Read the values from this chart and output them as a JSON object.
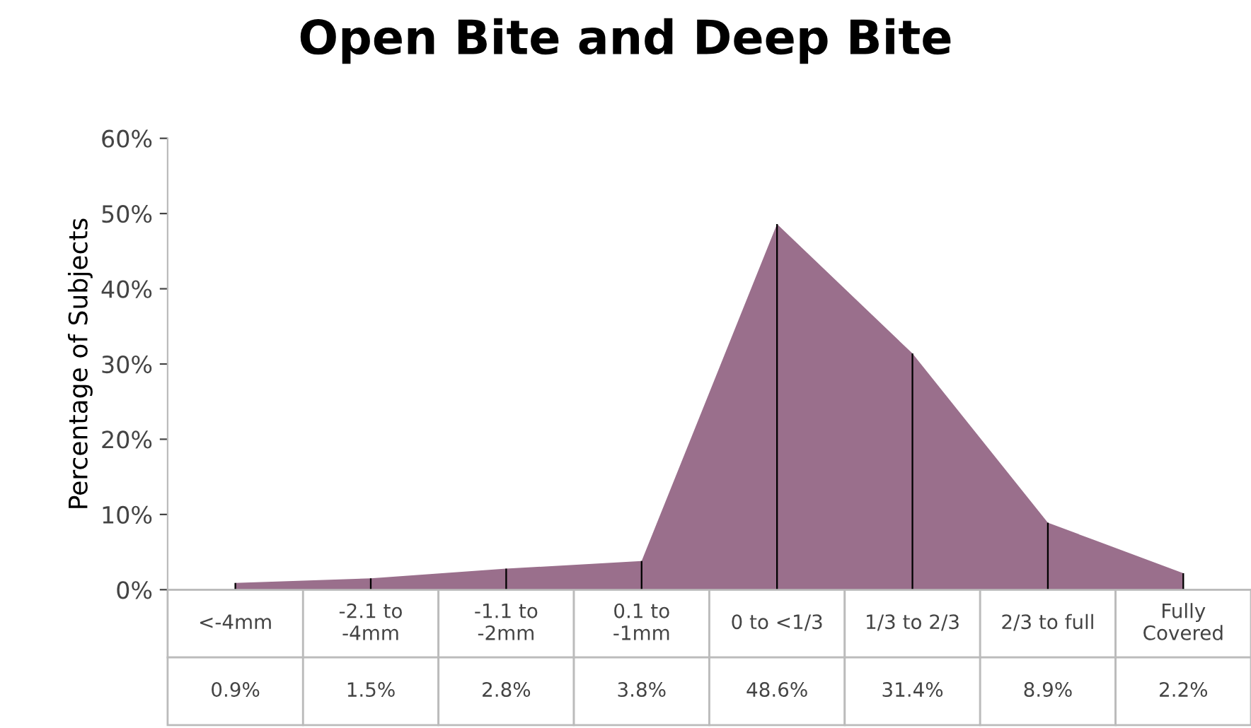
{
  "chart_data": {
    "title": "Open Bite and Deep Bite",
    "ylabel": "Percentage of Subjects",
    "categories": [
      "<-4mm",
      "-2.1 to\n-4mm",
      "-1.1 to\n-2mm",
      "0.1 to\n-1mm",
      "0 to <1/3",
      "1/3 to 2/3",
      "2/3 to full",
      "Fully\nCovered"
    ],
    "type": "area",
    "series": [
      {
        "color": "#9a6f8c",
        "values": [
          0.9,
          1.5,
          2.8,
          3.8,
          48.6,
          31.4,
          8.9,
          2.2
        ]
      },
      {
        "type": "bar",
        "color": "#000000",
        "values": [
          0.9,
          1.5,
          2.8,
          3.8,
          48.6,
          31.4,
          8.9,
          2.2
        ]
      }
    ],
    "value_labels": [
      "0.9%",
      "1.5%",
      "2.8%",
      "3.8%",
      "48.6%",
      "31.4%",
      "8.9%",
      "2.2%"
    ],
    "ylim": [
      0,
      60
    ],
    "yticks": [
      {
        "value": 0,
        "label": "0%"
      },
      {
        "value": 10,
        "label": "10%"
      },
      {
        "value": 20,
        "label": "20%"
      },
      {
        "value": 30,
        "label": "30%"
      },
      {
        "value": 40,
        "label": "40%"
      },
      {
        "value": 50,
        "label": "50%"
      },
      {
        "value": 60,
        "label": "60%"
      }
    ],
    "grid": false,
    "legend": false
  }
}
